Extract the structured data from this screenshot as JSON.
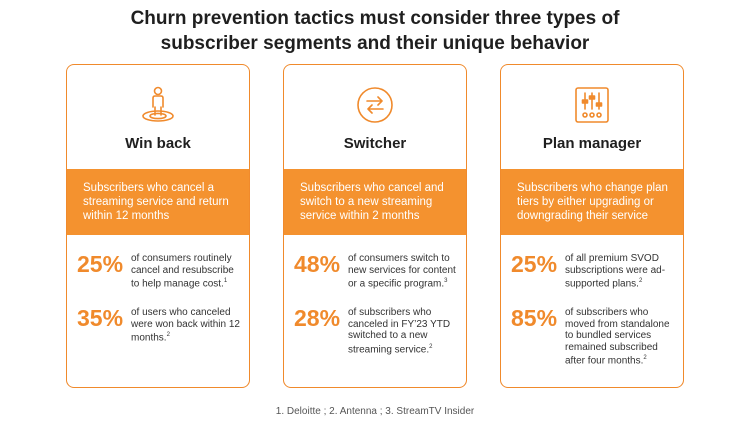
{
  "title": {
    "line1": "Churn prevention tactics must consider three types of",
    "line2": "subscriber segments and their unique behavior"
  },
  "cards": [
    {
      "icon": "person-on-target-icon",
      "title": "Win back",
      "band": "Subscribers who cancel a streaming service and return within 12 months",
      "stats": [
        {
          "value": "25%",
          "text": "of consumers routinely cancel and resubscribe to help manage cost.",
          "sup": "1"
        },
        {
          "value": "35%",
          "text": "of users who canceled were won back within 12 months.",
          "sup": "2"
        }
      ]
    },
    {
      "icon": "switch-arrows-icon",
      "title": "Switcher",
      "band": "Subscribers who cancel and switch to a new streaming service within 2 months",
      "stats": [
        {
          "value": "48%",
          "text": "of consumers switch to new services for content or a specific program.",
          "sup": "3"
        },
        {
          "value": "28%",
          "text": "of subscribers who canceled in FY’23 YTD switched to a new streaming service.",
          "sup": "2"
        }
      ]
    },
    {
      "icon": "sliders-icon",
      "title": "Plan manager",
      "band": "Subscribers who change plan tiers by either upgrading or downgrading their service",
      "stats": [
        {
          "value": "25%",
          "text": "of all premium SVOD subscriptions were ad-supported plans.",
          "sup": "2"
        },
        {
          "value": "85%",
          "text": "of subscribers who moved from standalone to bundled services remained subscribed after four months.",
          "sup": "2"
        }
      ]
    }
  ],
  "footnote": "1. Deloitte  ; 2. Antenna ; 3. StreamTV Insider",
  "colors": {
    "accent": "#f08a2c",
    "band": "#f4922f"
  }
}
